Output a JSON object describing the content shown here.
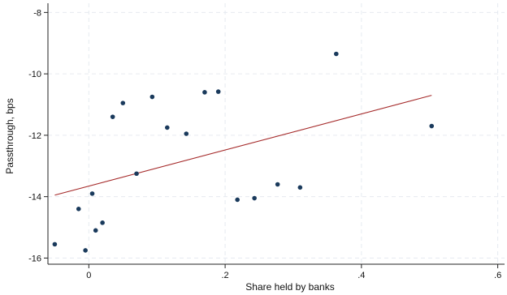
{
  "chart_data": {
    "type": "scatter",
    "title": "",
    "xlabel": "Share held by banks",
    "ylabel": "Passthrough, bps",
    "xlim": [
      -0.06,
      0.61
    ],
    "ylim": [
      -16.2,
      -7.7
    ],
    "xticks": [
      0,
      0.2,
      0.4,
      0.6
    ],
    "xtick_labels": [
      "0",
      ".2",
      ".4",
      ".6"
    ],
    "yticks": [
      -16,
      -14,
      -12,
      -10,
      -8
    ],
    "ytick_labels": [
      "-16",
      "-14",
      "-12",
      "-10",
      "-8"
    ],
    "grid": true,
    "colors": {
      "points": "#1a3a5c",
      "fit": "#a52a2a"
    },
    "series": [
      {
        "type": "scatter",
        "x": [
          -0.05,
          -0.015,
          -0.005,
          0.005,
          0.01,
          0.02,
          0.035,
          0.05,
          0.07,
          0.093,
          0.115,
          0.143,
          0.17,
          0.19,
          0.218,
          0.243,
          0.277,
          0.31,
          0.363,
          0.503
        ],
        "y": [
          -15.55,
          -14.4,
          -15.75,
          -13.9,
          -15.1,
          -14.85,
          -11.4,
          -10.95,
          -13.25,
          -10.75,
          -11.75,
          -11.95,
          -10.6,
          -10.58,
          -14.1,
          -14.05,
          -13.6,
          -13.7,
          -9.35,
          -11.7
        ]
      },
      {
        "type": "line",
        "x": [
          -0.05,
          0.503
        ],
        "y": [
          -13.95,
          -10.7
        ]
      }
    ]
  }
}
